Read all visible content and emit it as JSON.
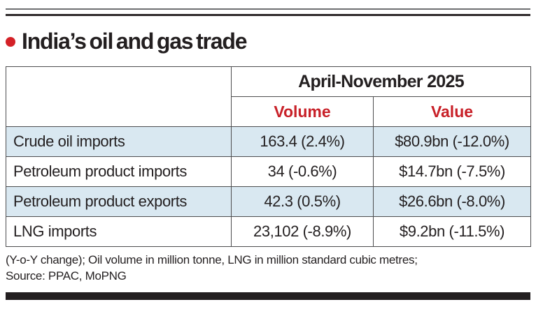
{
  "page": {
    "title": "India’s oil and gas trade"
  },
  "table": {
    "period_header": "April-November 2025",
    "columns": [
      {
        "label": "Volume"
      },
      {
        "label": "Value"
      }
    ],
    "rows": [
      {
        "label": "Crude oil imports",
        "volume": "163.4 (2.4%)",
        "value": "$80.9bn (-12.0%)"
      },
      {
        "label": "Petroleum product imports",
        "volume": "34 (-0.6%)",
        "value": "$14.7bn (-7.5%)"
      },
      {
        "label": "Petroleum product exports",
        "volume": "42.3 (0.5%)",
        "value": "$26.6bn (-8.0%)"
      },
      {
        "label": "LNG imports",
        "volume": "23,102 (-8.9%)",
        "value": "$9.2bn (-11.5%)"
      }
    ]
  },
  "footnote": {
    "line1": "(Y-o-Y change); Oil volume in million tonne, LNG in million standard cubic metres;",
    "line2": "Source: PPAC, MoPNG"
  },
  "colors": {
    "accent_red": "#c82028",
    "bullet_red": "#d42127",
    "row_highlight": "#d9e8f1",
    "text": "#231f20",
    "border": "#4d4d4f"
  },
  "chart_data": {
    "type": "table",
    "title": "India’s oil and gas trade",
    "period": "April-November 2025",
    "columns": [
      "",
      "Volume",
      "Value"
    ],
    "rows": [
      [
        "Crude oil imports",
        "163.4 (2.4%)",
        "$80.9bn (-12.0%)"
      ],
      [
        "Petroleum product imports",
        "34 (-0.6%)",
        "$14.7bn (-7.5%)"
      ],
      [
        "Petroleum product exports",
        "42.3 (0.5%)",
        "$26.6bn (-8.0%)"
      ],
      [
        "LNG imports",
        "23,102 (-8.9%)",
        "$9.2bn (-11.5%)"
      ]
    ],
    "notes": "(Y-o-Y change); Oil volume in million tonne, LNG in million standard cubic metres;",
    "source": "Source: PPAC, MoPNG"
  }
}
